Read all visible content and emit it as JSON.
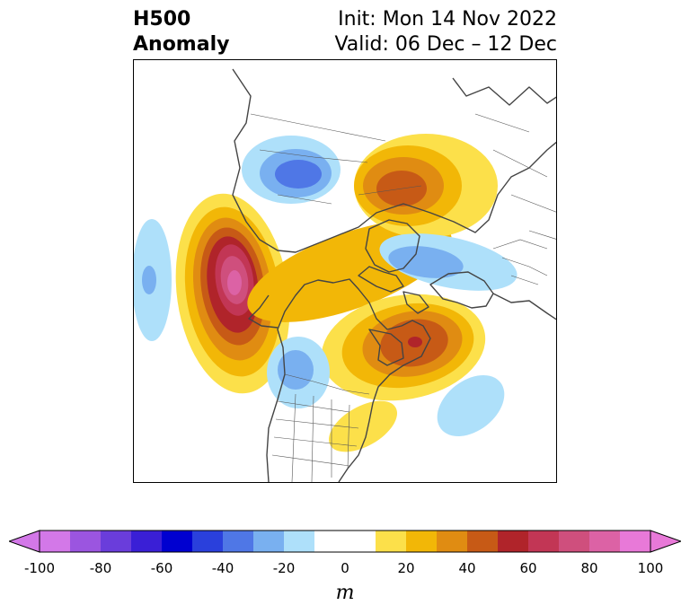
{
  "title": {
    "variable": "H500",
    "type": "Anomaly",
    "init": "Init: Mon 14 Nov 2022",
    "valid": "Valid: 06 Dec – 12 Dec"
  },
  "colorbar": {
    "units": "m",
    "ticks": [
      "-100",
      "-80",
      "-60",
      "-40",
      "-20",
      "0",
      "20",
      "40",
      "60",
      "80",
      "100"
    ],
    "bins": [
      {
        "from": -100,
        "to": -90,
        "color": "#d378e8"
      },
      {
        "from": -90,
        "to": -80,
        "color": "#9b55e0"
      },
      {
        "from": -80,
        "to": -70,
        "color": "#6a3ddb"
      },
      {
        "from": -70,
        "to": -60,
        "color": "#3a1fd6"
      },
      {
        "from": -60,
        "to": -50,
        "color": "#0000d0"
      },
      {
        "from": -50,
        "to": -40,
        "color": "#2a40dc"
      },
      {
        "from": -40,
        "to": -30,
        "color": "#4f77e6"
      },
      {
        "from": -30,
        "to": -20,
        "color": "#79b0f0"
      },
      {
        "from": -20,
        "to": -10,
        "color": "#aee0fa"
      },
      {
        "from": -10,
        "to": 10,
        "color": "#ffffff"
      },
      {
        "from": 10,
        "to": 20,
        "color": "#fce04a"
      },
      {
        "from": 20,
        "to": 30,
        "color": "#f2b707"
      },
      {
        "from": 30,
        "to": 40,
        "color": "#e08c12"
      },
      {
        "from": 40,
        "to": 50,
        "color": "#c75a16"
      },
      {
        "from": 50,
        "to": 60,
        "color": "#b0242a"
      },
      {
        "from": 60,
        "to": 70,
        "color": "#c23655"
      },
      {
        "from": 70,
        "to": 80,
        "color": "#cf4f7d"
      },
      {
        "from": 80,
        "to": 90,
        "color": "#dc62a5"
      },
      {
        "from": 90,
        "to": 100,
        "color": "#e879d8"
      }
    ],
    "extend_low_color": "#d378e8",
    "extend_high_color": "#e879d8"
  }
}
